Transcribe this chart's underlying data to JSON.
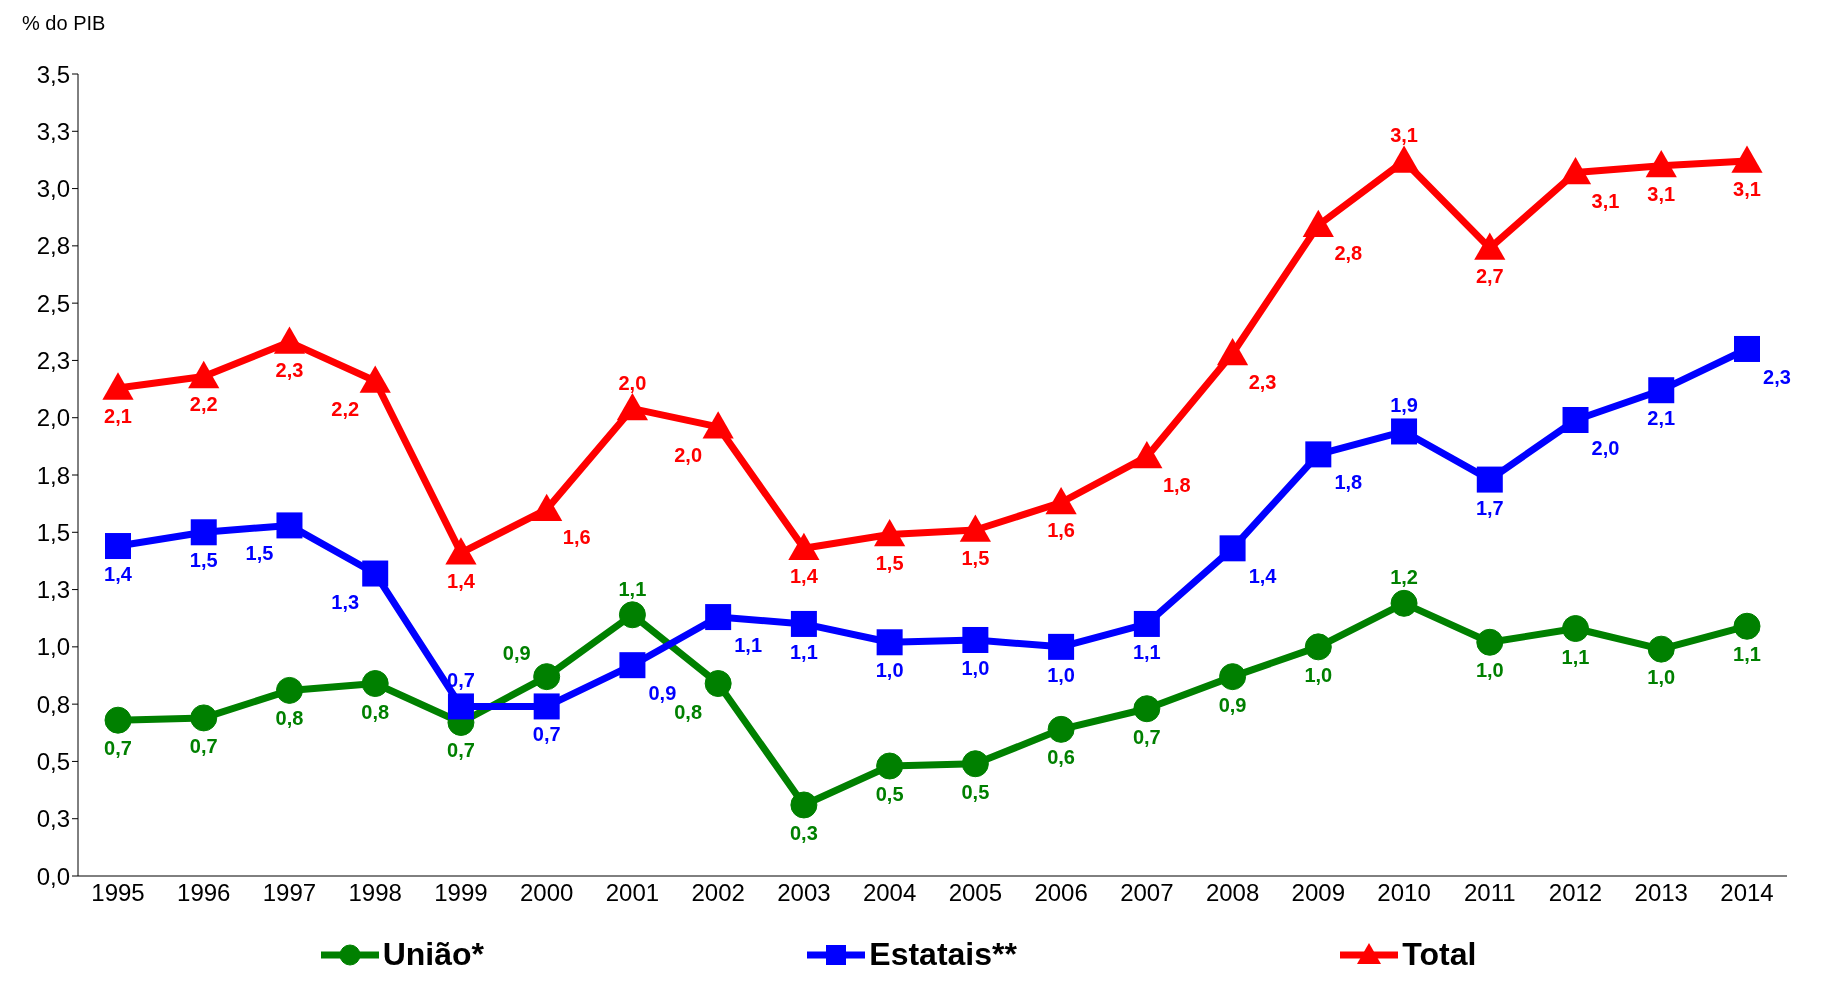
{
  "chart_data": {
    "type": "line",
    "ylabel": "% do PIB",
    "categories": [
      "1995",
      "1996",
      "1997",
      "1998",
      "1999",
      "2000",
      "2001",
      "2002",
      "2003",
      "2004",
      "2005",
      "2006",
      "2007",
      "2008",
      "2009",
      "2010",
      "2011",
      "2012",
      "2013",
      "2014"
    ],
    "series": [
      {
        "name": "União*",
        "color": "#008000",
        "marker": "circle",
        "values": [
          0.68,
          0.69,
          0.81,
          0.84,
          0.67,
          0.87,
          1.14,
          0.84,
          0.31,
          0.48,
          0.49,
          0.64,
          0.73,
          0.87,
          1.0,
          1.19,
          1.02,
          1.08,
          0.99,
          1.09
        ],
        "value_labels": [
          "0,7",
          "0,7",
          "0,8",
          "0,8",
          "0,7",
          "0,9",
          "1,1",
          "0,8",
          "0,3",
          "0,5",
          "0,5",
          "0,6",
          "0,7",
          "0,9",
          "1,0",
          "1,2",
          "1,0",
          "1,1",
          "1,0",
          "1,1"
        ]
      },
      {
        "name": "Estatais**",
        "color": "#0000ff",
        "marker": "square",
        "values": [
          1.44,
          1.5,
          1.53,
          1.32,
          0.74,
          0.74,
          0.92,
          1.13,
          1.1,
          1.02,
          1.03,
          1.0,
          1.1,
          1.43,
          1.84,
          1.94,
          1.73,
          1.99,
          2.12,
          2.3
        ],
        "value_labels": [
          "1,4",
          "1,5",
          "1,5",
          "1,3",
          "0,7",
          "0,7",
          "0,9",
          "1,1",
          "1,1",
          "1,0",
          "1,0",
          "1,0",
          "1,1",
          "1,4",
          "1,8",
          "1,9",
          "1,7",
          "2,0",
          "2,1",
          "2,3"
        ]
      },
      {
        "name": "Total",
        "color": "#ff0000",
        "marker": "triangle",
        "values": [
          2.13,
          2.18,
          2.33,
          2.16,
          1.41,
          1.6,
          2.04,
          1.96,
          1.43,
          1.49,
          1.51,
          1.63,
          1.83,
          2.28,
          2.84,
          3.12,
          2.74,
          3.07,
          3.1,
          3.12
        ],
        "value_labels": [
          "2,1",
          "2,2",
          "2,3",
          "2,2",
          "1,4",
          "1,6",
          "2,0",
          "2,0",
          "1,4",
          "1,5",
          "1,5",
          "1,6",
          "1,8",
          "2,3",
          "2,8",
          "3,1",
          "2,7",
          "3,1",
          "3,1",
          "3,1"
        ]
      }
    ],
    "ylim": [
      0,
      3.5
    ],
    "yticks": [
      {
        "value": 0,
        "label": "0,0"
      },
      {
        "value": 0.25,
        "label": "0,3"
      },
      {
        "value": 0.5,
        "label": "0,5"
      },
      {
        "value": 0.75,
        "label": "0,8"
      },
      {
        "value": 1,
        "label": "1,0"
      },
      {
        "value": 1.25,
        "label": "1,3"
      },
      {
        "value": 1.5,
        "label": "1,5"
      },
      {
        "value": 1.75,
        "label": "1,8"
      },
      {
        "value": 2,
        "label": "2,0"
      },
      {
        "value": 2.25,
        "label": "2,3"
      },
      {
        "value": 2.5,
        "label": "2,5"
      },
      {
        "value": 2.75,
        "label": "2,8"
      },
      {
        "value": 3,
        "label": "3,0"
      },
      {
        "value": 3.25,
        "label": "3,3"
      },
      {
        "value": 3.5,
        "label": "3,5"
      }
    ],
    "grid": false,
    "legend": "bottom",
    "line_style": "solid"
  }
}
